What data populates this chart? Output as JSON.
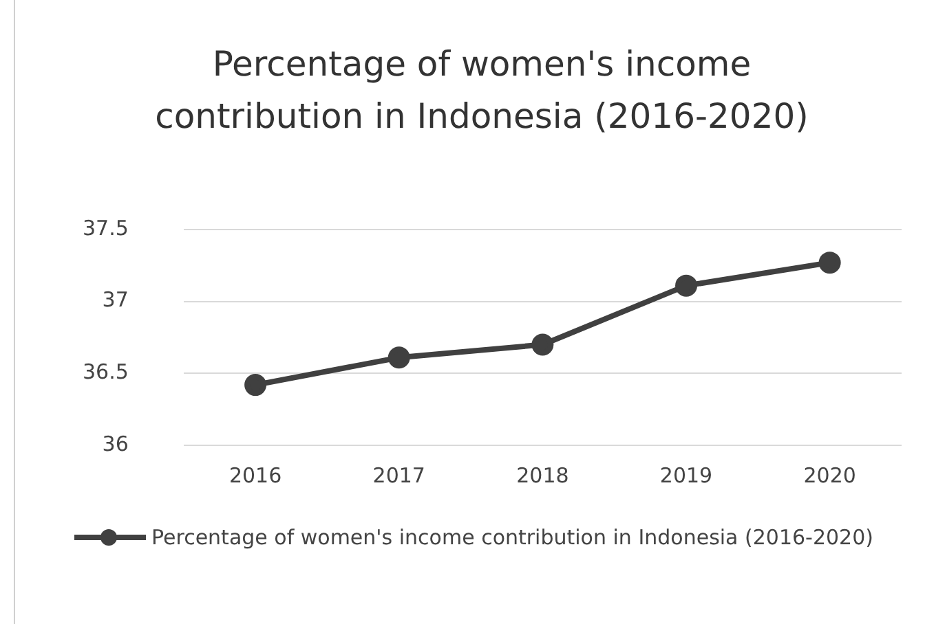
{
  "chart_data": {
    "type": "line",
    "title": "Percentage of women's income contribution in Indonesia (2016-2020)",
    "categories": [
      "2016",
      "2017",
      "2018",
      "2019",
      "2020"
    ],
    "series": [
      {
        "name": "Percentage of women's income contribution in Indonesia (2016-2020)",
        "color": "#404040",
        "values": [
          36.42,
          36.61,
          36.7,
          37.11,
          37.27
        ]
      }
    ],
    "ylim": [
      36,
      37.5
    ],
    "yticks": [
      36,
      36.5,
      37,
      37.5
    ],
    "grid": "y",
    "legend": "bottom",
    "marker": "circle",
    "line_style": "solid"
  }
}
